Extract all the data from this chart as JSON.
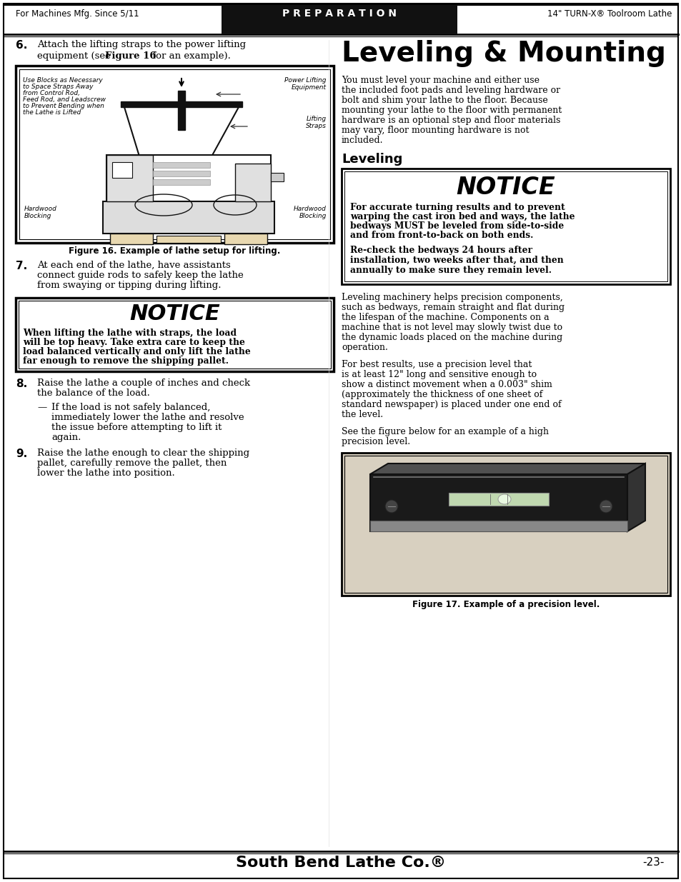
{
  "page_bg": "#ffffff",
  "header_left": "For Machines Mfg. Since 5/11",
  "header_center": "P R E P A R A T I O N",
  "header_right": "14\" TURN-X® Toolroom Lathe",
  "footer_text": "South Bend Lathe Co.®",
  "footer_page": "-23-",
  "title_main": "Leveling & Mounting",
  "section_leveling": "Leveling",
  "step6_num": "6.",
  "step6_line1": "Attach the lifting straps to the power lifting",
  "step6_line2a": "equipment (see ",
  "step6_line2b": "Figure 16",
  "step6_line2c": " for an example).",
  "fig16_caption": "Figure 16. Example of lathe setup for lifting.",
  "step7_num": "7.",
  "step7_lines": [
    "At each end of the lathe, have assistants",
    "connect guide rods to safely keep the lathe",
    "from swaying or tipping during lifting."
  ],
  "notice1_title": "NOTICE",
  "notice1_lines": [
    "When lifting the lathe with straps, the load",
    "will be top heavy. Take extra care to keep the",
    "load balanced vertically and only lift the lathe",
    "far enough to remove the shipping pallet."
  ],
  "step8_num": "8.",
  "step8_lines": [
    "Raise the lathe a couple of inches and check",
    "the balance of the load."
  ],
  "step8_sub_lines": [
    "If the load is not safely balanced,",
    "immediately lower the lathe and resolve",
    "the issue before attempting to lift it",
    "again."
  ],
  "step9_num": "9.",
  "step9_lines": [
    "Raise the lathe enough to clear the shipping",
    "pallet, carefully remove the pallet, then",
    "lower the lathe into position."
  ],
  "right_intro_lines": [
    "You must level your machine and either use",
    "the included foot pads and leveling hardware or",
    "bolt and shim your lathe to the floor. Because",
    "mounting your lathe to the floor with permanent",
    "hardware is an optional step and floor materials",
    "may vary, floor mounting hardware is not",
    "included."
  ],
  "notice2_title": "NOTICE",
  "notice2_body1_lines": [
    "For accurate turning results and to prevent",
    "warping the cast iron bed and ways, the lathe",
    "bedways MUST be leveled from side-to-side",
    "and from front-to-back on both ends."
  ],
  "notice2_body2_lines": [
    "Re-check the bedways 24 hours after",
    "installation, two weeks after that, and then",
    "annually to make sure they remain level."
  ],
  "right_para1_lines": [
    "Leveling machinery helps precision components,",
    "such as bedways, remain straight and flat during",
    "the lifespan of the machine. Components on a",
    "machine that is not level may slowly twist due to",
    "the dynamic loads placed on the machine during",
    "operation."
  ],
  "right_para2_lines": [
    "For best results, use a precision level that",
    "is at least 12\" long and sensitive enough to",
    "show a distinct movement when a 0.003\" shim",
    "(approximately the thickness of one sheet of",
    "standard newspaper) is placed under one end of",
    "the level."
  ],
  "right_para3_lines": [
    "See the figure below for an example of a high",
    "precision level."
  ],
  "fig17_caption": "Figure 17. Example of a precision level.",
  "fig16_label_tl_lines": [
    "Use Blocks as Necessary",
    "to Space Straps Away",
    "from Control Rod,",
    "Feed Rod, and Leadscrew",
    "to Prevent Bending when",
    "the Lathe is Lifted"
  ],
  "fig16_label_tr_lines": [
    "Power Lifting",
    "Equipment"
  ],
  "fig16_label_mr": "Lifting\nStraps",
  "fig16_label_bl": "Hardwood\nBlocking",
  "fig16_label_br": "Hardwood\nBlocking"
}
